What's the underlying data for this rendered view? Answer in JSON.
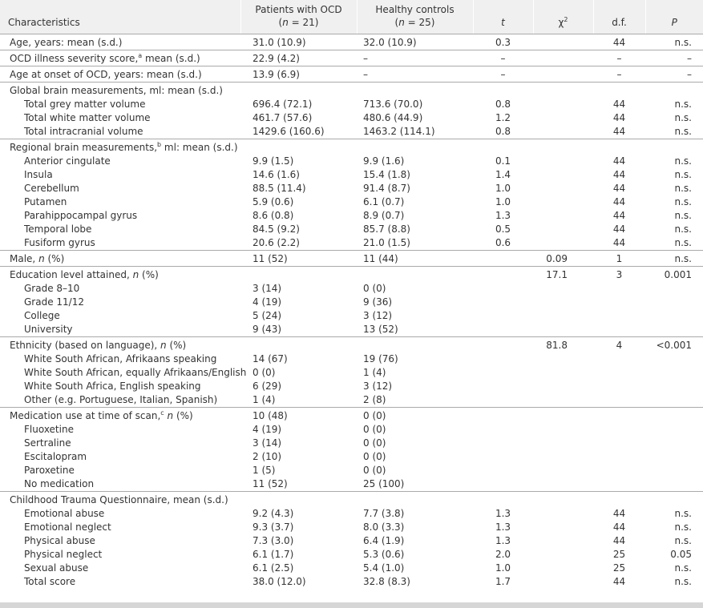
{
  "table": {
    "columns": [
      [
        [
          "Characteristics"
        ]
      ],
      [
        [
          "Patients with OCD"
        ],
        [
          "(",
          {
            "text": "n",
            "style": "italic"
          },
          " = 21)"
        ]
      ],
      [
        [
          "Healthy controls"
        ],
        [
          "(",
          {
            "text": "n",
            "style": "italic"
          },
          " = 25)"
        ]
      ],
      [
        [
          {
            "text": "t",
            "style": "italic"
          }
        ]
      ],
      [
        [
          "χ",
          {
            "text": "2",
            "style": "sup"
          }
        ]
      ],
      [
        [
          "d.f."
        ]
      ],
      [
        [
          {
            "text": "P",
            "style": "italic"
          }
        ]
      ]
    ],
    "sections": [
      {
        "rows": [
          {
            "label": [
              "Age, years: mean (s.d.)"
            ],
            "cells": [
              "31.0 (10.9)",
              "32.0 (10.9)",
              "0.3",
              null,
              "44",
              "n.s."
            ]
          }
        ]
      },
      {
        "rows": [
          {
            "label": [
              "OCD illness severity score,",
              {
                "text": "a",
                "style": "sup"
              },
              " mean (s.d.)"
            ],
            "cells": [
              "22.9 (4.2)",
              "–",
              "–",
              null,
              "–",
              "–"
            ]
          }
        ]
      },
      {
        "rows": [
          {
            "label": [
              "Age at onset of OCD, years: mean (s.d.)"
            ],
            "cells": [
              "13.9 (6.9)",
              "–",
              "–",
              null,
              "–",
              "–"
            ]
          }
        ]
      },
      {
        "rows": [
          {
            "label": [
              "Global brain measurements, ml: mean (s.d.)"
            ],
            "cells": [
              null,
              null,
              null,
              null,
              null,
              null
            ]
          },
          {
            "indent": true,
            "label": [
              "Total grey matter volume"
            ],
            "cells": [
              "696.4 (72.1)",
              "713.6 (70.0)",
              "0.8",
              null,
              "44",
              "n.s."
            ]
          },
          {
            "indent": true,
            "label": [
              "Total white matter volume"
            ],
            "cells": [
              "461.7 (57.6)",
              "480.6 (44.9)",
              "1.2",
              null,
              "44",
              "n.s."
            ]
          },
          {
            "indent": true,
            "label": [
              "Total intracranial volume"
            ],
            "cells": [
              "1429.6 (160.6)",
              "1463.2 (114.1)",
              "0.8",
              null,
              "44",
              "n.s."
            ]
          }
        ]
      },
      {
        "rows": [
          {
            "label": [
              "Regional brain measurements,",
              {
                "text": "b",
                "style": "sup"
              },
              " ml: mean (s.d.)"
            ],
            "cells": [
              null,
              null,
              null,
              null,
              null,
              null
            ]
          },
          {
            "indent": true,
            "label": [
              "Anterior cingulate"
            ],
            "cells": [
              "9.9 (1.5)",
              "9.9 (1.6)",
              "0.1",
              null,
              "44",
              "n.s."
            ]
          },
          {
            "indent": true,
            "label": [
              "Insula"
            ],
            "cells": [
              "14.6 (1.6)",
              "15.4 (1.8)",
              "1.4",
              null,
              "44",
              "n.s."
            ]
          },
          {
            "indent": true,
            "label": [
              "Cerebellum"
            ],
            "cells": [
              "88.5 (11.4)",
              "91.4 (8.7)",
              "1.0",
              null,
              "44",
              "n.s."
            ]
          },
          {
            "indent": true,
            "label": [
              "Putamen"
            ],
            "cells": [
              "5.9 (0.6)",
              "6.1 (0.7)",
              "1.0",
              null,
              "44",
              "n.s."
            ]
          },
          {
            "indent": true,
            "label": [
              "Parahippocampal gyrus"
            ],
            "cells": [
              "8.6 (0.8)",
              "8.9 (0.7)",
              "1.3",
              null,
              "44",
              "n.s."
            ]
          },
          {
            "indent": true,
            "label": [
              "Temporal lobe"
            ],
            "cells": [
              "84.5 (9.2)",
              "85.7 (8.8)",
              "0.5",
              null,
              "44",
              "n.s."
            ]
          },
          {
            "indent": true,
            "label": [
              "Fusiform gyrus"
            ],
            "cells": [
              "20.6 (2.2)",
              "21.0 (1.5)",
              "0.6",
              null,
              "44",
              "n.s."
            ]
          }
        ]
      },
      {
        "rows": [
          {
            "label": [
              "Male, ",
              {
                "text": "n",
                "style": "italic"
              },
              " (%)"
            ],
            "cells": [
              "11 (52)",
              "11 (44)",
              null,
              "0.09",
              "1",
              "n.s."
            ]
          }
        ]
      },
      {
        "rows": [
          {
            "label": [
              "Education level attained, ",
              {
                "text": "n",
                "style": "italic"
              },
              " (%)"
            ],
            "cells": [
              null,
              null,
              null,
              "17.1",
              "3",
              "0.001"
            ]
          },
          {
            "indent": true,
            "label": [
              "Grade 8–10"
            ],
            "cells": [
              "3 (14)",
              "0 (0)",
              null,
              null,
              null,
              null
            ]
          },
          {
            "indent": true,
            "label": [
              "Grade 11/12"
            ],
            "cells": [
              "4 (19)",
              "9 (36)",
              null,
              null,
              null,
              null
            ]
          },
          {
            "indent": true,
            "label": [
              "College"
            ],
            "cells": [
              "5 (24)",
              "3 (12)",
              null,
              null,
              null,
              null
            ]
          },
          {
            "indent": true,
            "label": [
              "University"
            ],
            "cells": [
              "9 (43)",
              "13 (52)",
              null,
              null,
              null,
              null
            ]
          }
        ]
      },
      {
        "rows": [
          {
            "label": [
              "Ethnicity (based on language), ",
              {
                "text": "n",
                "style": "italic"
              },
              " (%)"
            ],
            "cells": [
              null,
              null,
              null,
              "81.8",
              "4",
              "<0.001"
            ]
          },
          {
            "indent": true,
            "label": [
              "White South African, Afrikaans speaking"
            ],
            "cells": [
              "14 (67)",
              "19 (76)",
              null,
              null,
              null,
              null
            ]
          },
          {
            "indent": true,
            "label": [
              "White South African, equally Afrikaans/English"
            ],
            "cells": [
              "0 (0)",
              "1 (4)",
              null,
              null,
              null,
              null
            ]
          },
          {
            "indent": true,
            "label": [
              "White South Africa, English speaking"
            ],
            "cells": [
              "6 (29)",
              "3 (12)",
              null,
              null,
              null,
              null
            ]
          },
          {
            "indent": true,
            "label": [
              "Other (e.g. Portuguese, Italian, Spanish)"
            ],
            "cells": [
              "1 (4)",
              "2 (8)",
              null,
              null,
              null,
              null
            ]
          }
        ]
      },
      {
        "rows": [
          {
            "label": [
              "Medication use at time of scan,",
              {
                "text": "c",
                "style": "sup"
              },
              " ",
              {
                "text": "n",
                "style": "italic"
              },
              " (%)"
            ],
            "cells": [
              "10 (48)",
              "0 (0)",
              null,
              null,
              null,
              null
            ]
          },
          {
            "indent": true,
            "label": [
              "Fluoxetine"
            ],
            "cells": [
              "4 (19)",
              "0 (0)",
              null,
              null,
              null,
              null
            ]
          },
          {
            "indent": true,
            "label": [
              "Sertraline"
            ],
            "cells": [
              "3 (14)",
              "0 (0)",
              null,
              null,
              null,
              null
            ]
          },
          {
            "indent": true,
            "label": [
              "Escitalopram"
            ],
            "cells": [
              "2 (10)",
              "0 (0)",
              null,
              null,
              null,
              null
            ]
          },
          {
            "indent": true,
            "label": [
              "Paroxetine"
            ],
            "cells": [
              "1 (5)",
              "0 (0)",
              null,
              null,
              null,
              null
            ]
          },
          {
            "indent": true,
            "label": [
              "No medication"
            ],
            "cells": [
              "11 (52)",
              "25 (100)",
              null,
              null,
              null,
              null
            ]
          }
        ]
      },
      {
        "rows": [
          {
            "label": [
              "Childhood Trauma Questionnaire, mean (s.d.)"
            ],
            "cells": [
              null,
              null,
              null,
              null,
              null,
              null
            ]
          },
          {
            "indent": true,
            "label": [
              "Emotional abuse"
            ],
            "cells": [
              "9.2 (4.3)",
              "7.7 (3.8)",
              "1.3",
              null,
              "44",
              "n.s."
            ]
          },
          {
            "indent": true,
            "label": [
              "Emotional neglect"
            ],
            "cells": [
              "9.3 (3.7)",
              "8.0 (3.3)",
              "1.3",
              null,
              "44",
              "n.s."
            ]
          },
          {
            "indent": true,
            "label": [
              "Physical abuse"
            ],
            "cells": [
              "7.3 (3.0)",
              "6.4 (1.9)",
              "1.3",
              null,
              "44",
              "n.s."
            ]
          },
          {
            "indent": true,
            "label": [
              "Physical neglect"
            ],
            "cells": [
              "6.1 (1.7)",
              "5.3 (0.6)",
              "2.0",
              null,
              "25",
              "0.05"
            ]
          },
          {
            "indent": true,
            "label": [
              "Sexual abuse"
            ],
            "cells": [
              "6.1 (2.5)",
              "5.4 (1.0)",
              "1.0",
              null,
              "25",
              "n.s."
            ]
          },
          {
            "indent": true,
            "label": [
              "Total score"
            ],
            "cells": [
              "38.0 (12.0)",
              "32.8 (8.3)",
              "1.7",
              null,
              "44",
              "n.s."
            ]
          }
        ]
      }
    ]
  }
}
